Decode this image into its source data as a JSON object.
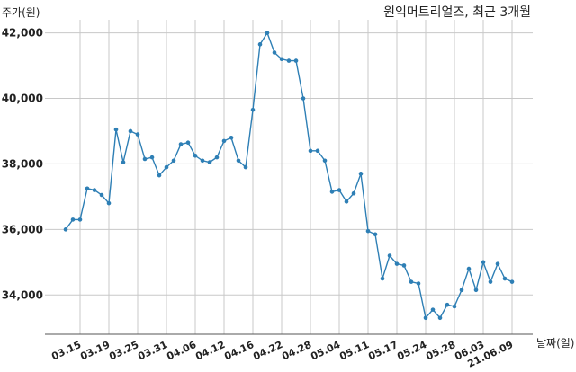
{
  "chart_data": {
    "type": "line",
    "title": "원익머트리얼즈, 최근 3개월",
    "ylabel": "주가(원)",
    "xlabel": "날짜(일)",
    "ylim": [
      32800,
      42400
    ],
    "yticks": [
      34000,
      36000,
      38000,
      40000,
      42000
    ],
    "ytick_labels": [
      "34,000",
      "36,000",
      "38,000",
      "40,000",
      "42,000"
    ],
    "grid": true,
    "x_ticks": [
      {
        "index": 2,
        "label": "03.15"
      },
      {
        "index": 6,
        "label": "03.19"
      },
      {
        "index": 10,
        "label": "03.25"
      },
      {
        "index": 14,
        "label": "03.31"
      },
      {
        "index": 18,
        "label": "04.06"
      },
      {
        "index": 22,
        "label": "04.12"
      },
      {
        "index": 26,
        "label": "04.16"
      },
      {
        "index": 30,
        "label": "04.22"
      },
      {
        "index": 34,
        "label": "04.28"
      },
      {
        "index": 38,
        "label": "05.04"
      },
      {
        "index": 42,
        "label": "05.11"
      },
      {
        "index": 46,
        "label": "05.17"
      },
      {
        "index": 50,
        "label": "05.24"
      },
      {
        "index": 54,
        "label": "05.28"
      },
      {
        "index": 58,
        "label": "06.03"
      },
      {
        "index": 62,
        "label": "21.06.09"
      }
    ],
    "series": [
      {
        "color": "#2e7fb5",
        "values": [
          36000,
          36300,
          36300,
          37250,
          37200,
          37050,
          36800,
          39050,
          38050,
          39000,
          38900,
          38150,
          38200,
          37650,
          37900,
          38100,
          38600,
          38650,
          38250,
          38100,
          38050,
          38200,
          38700,
          38800,
          38100,
          37900,
          39650,
          41650,
          42000,
          41400,
          41200,
          41150,
          41150,
          40000,
          38400,
          38400,
          38100,
          37150,
          37200,
          36850,
          37100,
          37700,
          35950,
          35850,
          34500,
          35200,
          34950,
          34900,
          34400,
          34350,
          33300,
          33550,
          33300,
          33700,
          33650,
          34150,
          34800,
          34150,
          35000,
          34400,
          34950,
          34500,
          34400
        ]
      }
    ]
  }
}
